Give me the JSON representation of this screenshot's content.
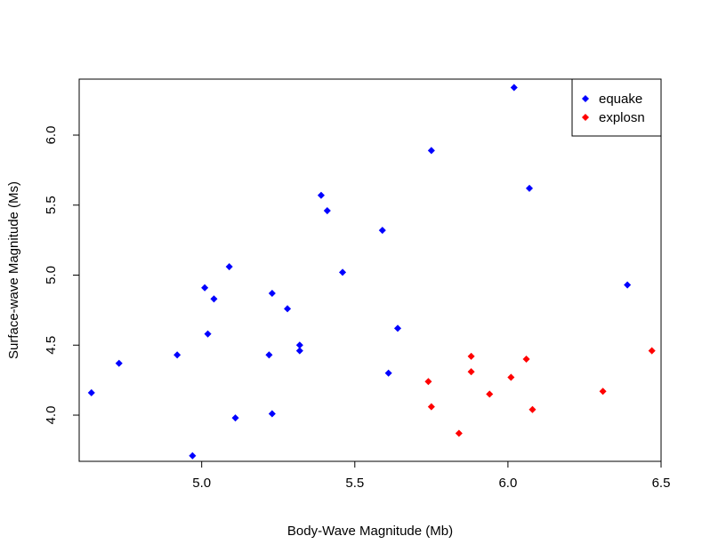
{
  "chart_data": {
    "type": "scatter",
    "title": "",
    "xlabel": "Body-Wave Magnitude (Mb)",
    "ylabel": "Surface-wave Magnitude (Ms)",
    "xlim": [
      4.6,
      6.5
    ],
    "ylim": [
      3.67,
      6.4
    ],
    "xticks": [
      "5.0",
      "5.5",
      "6.0",
      "6.5"
    ],
    "yticks": [
      "4.0",
      "4.5",
      "5.0",
      "5.5",
      "6.0"
    ],
    "legend_position": "top-right",
    "grid": false,
    "series": [
      {
        "name": "equake",
        "color": "#0000ff",
        "marker": "diamond",
        "points": [
          {
            "x": 4.64,
            "y": 4.16
          },
          {
            "x": 4.73,
            "y": 4.37
          },
          {
            "x": 4.92,
            "y": 4.43
          },
          {
            "x": 4.97,
            "y": 3.71
          },
          {
            "x": 5.01,
            "y": 4.91
          },
          {
            "x": 5.02,
            "y": 4.58
          },
          {
            "x": 5.04,
            "y": 4.83
          },
          {
            "x": 5.09,
            "y": 5.06
          },
          {
            "x": 5.11,
            "y": 3.98
          },
          {
            "x": 5.22,
            "y": 4.43
          },
          {
            "x": 5.23,
            "y": 4.87
          },
          {
            "x": 5.23,
            "y": 4.01
          },
          {
            "x": 5.28,
            "y": 4.76
          },
          {
            "x": 5.32,
            "y": 4.5
          },
          {
            "x": 5.32,
            "y": 4.46
          },
          {
            "x": 5.39,
            "y": 5.57
          },
          {
            "x": 5.41,
            "y": 5.46
          },
          {
            "x": 5.46,
            "y": 5.02
          },
          {
            "x": 5.59,
            "y": 5.32
          },
          {
            "x": 5.61,
            "y": 4.3
          },
          {
            "x": 5.64,
            "y": 4.62
          },
          {
            "x": 5.75,
            "y": 5.89
          },
          {
            "x": 6.02,
            "y": 6.34
          },
          {
            "x": 6.07,
            "y": 5.62
          },
          {
            "x": 6.39,
            "y": 4.93
          }
        ]
      },
      {
        "name": "explosn",
        "color": "#ff0000",
        "marker": "diamond",
        "points": [
          {
            "x": 5.74,
            "y": 4.24
          },
          {
            "x": 5.75,
            "y": 4.06
          },
          {
            "x": 5.84,
            "y": 3.87
          },
          {
            "x": 5.88,
            "y": 4.42
          },
          {
            "x": 5.88,
            "y": 4.31
          },
          {
            "x": 5.94,
            "y": 4.15
          },
          {
            "x": 6.01,
            "y": 4.27
          },
          {
            "x": 6.06,
            "y": 4.4
          },
          {
            "x": 6.08,
            "y": 4.04
          },
          {
            "x": 6.31,
            "y": 4.17
          },
          {
            "x": 6.47,
            "y": 4.46
          }
        ]
      }
    ]
  }
}
